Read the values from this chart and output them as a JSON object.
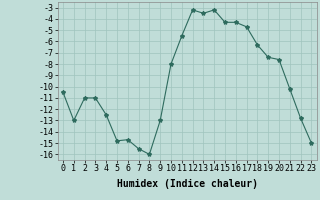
{
  "x": [
    0,
    1,
    2,
    3,
    4,
    5,
    6,
    7,
    8,
    9,
    10,
    11,
    12,
    13,
    14,
    15,
    16,
    17,
    18,
    19,
    20,
    21,
    22,
    23
  ],
  "y": [
    -10.5,
    -13.0,
    -11.0,
    -11.0,
    -12.5,
    -14.8,
    -14.7,
    -15.5,
    -16.0,
    -13.0,
    -8.0,
    -5.5,
    -3.2,
    -3.5,
    -3.2,
    -4.3,
    -4.3,
    -4.7,
    -6.3,
    -7.4,
    -7.6,
    -10.2,
    -12.8,
    -15.0
  ],
  "line_color": "#2e6b5e",
  "marker": "*",
  "marker_size": 3,
  "bg_color": "#c0ddd8",
  "grid_color": "#a0c4be",
  "xlabel": "Humidex (Indice chaleur)",
  "xlim": [
    -0.5,
    23.5
  ],
  "ylim": [
    -16.5,
    -2.5
  ],
  "yticks": [
    -3,
    -4,
    -5,
    -6,
    -7,
    -8,
    -9,
    -10,
    -11,
    -12,
    -13,
    -14,
    -15,
    -16
  ],
  "xticks": [
    0,
    1,
    2,
    3,
    4,
    5,
    6,
    7,
    8,
    9,
    10,
    11,
    12,
    13,
    14,
    15,
    16,
    17,
    18,
    19,
    20,
    21,
    22,
    23
  ],
  "label_fontsize": 7,
  "tick_fontsize": 6
}
